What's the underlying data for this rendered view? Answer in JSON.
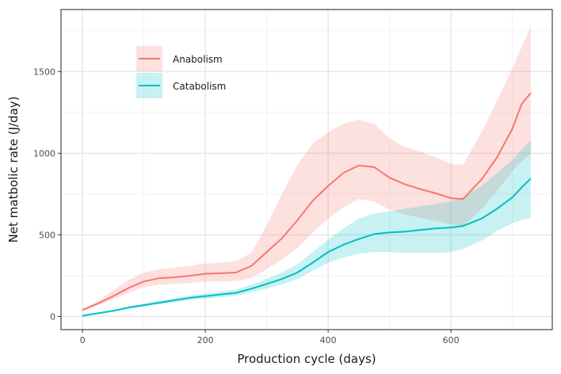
{
  "chart_data": {
    "type": "line",
    "xlabel": "Production cycle (days)",
    "ylabel": "Net matbolic rate (J/day)",
    "xlim": [
      -35,
      765
    ],
    "ylim": [
      -80,
      1880
    ],
    "x_ticks": [
      0,
      200,
      400,
      600
    ],
    "y_ticks": [
      0,
      500,
      1000,
      1500
    ],
    "grid": true,
    "legend_position": "top-left",
    "series": [
      {
        "name": "Anabolism",
        "color": "#F8766D",
        "ribbon_color": "#FFDCDA",
        "x": [
          0,
          25,
          50,
          75,
          100,
          125,
          150,
          175,
          200,
          225,
          250,
          275,
          300,
          325,
          350,
          375,
          400,
          425,
          450,
          475,
          500,
          525,
          550,
          575,
          600,
          620,
          650,
          675,
          700,
          715,
          730
        ],
        "y": [
          40,
          80,
          125,
          175,
          215,
          235,
          240,
          250,
          262,
          265,
          270,
          310,
          395,
          480,
          590,
          710,
          800,
          880,
          925,
          915,
          850,
          810,
          780,
          755,
          725,
          720,
          840,
          975,
          1150,
          1300,
          1370
        ],
        "lower": [
          35,
          70,
          105,
          145,
          180,
          195,
          200,
          205,
          215,
          215,
          218,
          235,
          290,
          350,
          420,
          515,
          600,
          670,
          720,
          705,
          655,
          625,
          605,
          585,
          565,
          555,
          660,
          770,
          890,
          950,
          1000
        ],
        "upper": [
          45,
          95,
          160,
          225,
          270,
          290,
          300,
          310,
          325,
          330,
          340,
          390,
          560,
          750,
          930,
          1060,
          1130,
          1180,
          1205,
          1180,
          1090,
          1040,
          1010,
          975,
          935,
          930,
          1130,
          1320,
          1520,
          1650,
          1780
        ]
      },
      {
        "name": "Catabolism",
        "color": "#00BFC4",
        "ribbon_color": "#C9F1F1",
        "x": [
          0,
          25,
          50,
          75,
          100,
          125,
          150,
          175,
          200,
          225,
          250,
          275,
          300,
          325,
          350,
          375,
          400,
          425,
          450,
          475,
          500,
          525,
          550,
          575,
          600,
          620,
          650,
          675,
          700,
          715,
          730
        ],
        "y": [
          5,
          20,
          35,
          55,
          70,
          85,
          100,
          115,
          125,
          135,
          145,
          170,
          200,
          230,
          270,
          330,
          395,
          440,
          475,
          505,
          515,
          520,
          530,
          540,
          545,
          555,
          600,
          660,
          730,
          790,
          845
        ],
        "lower": [
          5,
          18,
          30,
          48,
          62,
          75,
          88,
          100,
          110,
          118,
          127,
          148,
          172,
          198,
          230,
          280,
          330,
          360,
          385,
          395,
          395,
          390,
          390,
          390,
          395,
          415,
          465,
          525,
          570,
          590,
          605
        ],
        "upper": [
          5,
          22,
          40,
          63,
          80,
          96,
          112,
          128,
          140,
          152,
          165,
          195,
          232,
          270,
          320,
          395,
          470,
          540,
          600,
          630,
          645,
          660,
          675,
          690,
          705,
          730,
          800,
          880,
          960,
          1020,
          1080
        ]
      }
    ]
  }
}
